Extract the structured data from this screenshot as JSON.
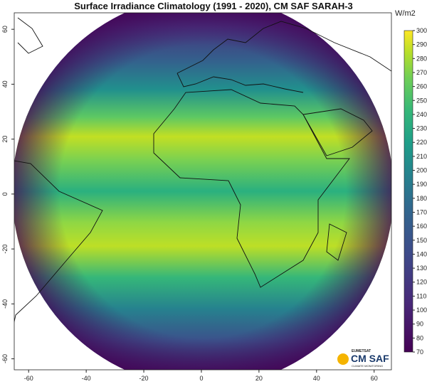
{
  "title": "Surface Irradiance Climatology (1991 - 2020),  CM SAF SARAH-3",
  "x_axis": {
    "lim": [
      -65,
      66
    ],
    "ticks": [
      -60,
      -40,
      -20,
      0,
      20,
      40,
      60
    ]
  },
  "y_axis": {
    "lim": [
      66,
      -64
    ],
    "ticks": [
      60,
      40,
      20,
      0,
      -20,
      -40,
      -60
    ]
  },
  "colorbar": {
    "unit": "W/m2",
    "lim": [
      70,
      300
    ],
    "ticks": [
      70,
      80,
      90,
      100,
      110,
      120,
      130,
      140,
      150,
      160,
      170,
      180,
      190,
      200,
      210,
      220,
      230,
      240,
      250,
      260,
      270,
      280,
      290,
      300
    ]
  },
  "logo": {
    "org": "EUMETSAT",
    "name": "CM SAF",
    "tagline": "CLIMATE MONITORING"
  }
}
